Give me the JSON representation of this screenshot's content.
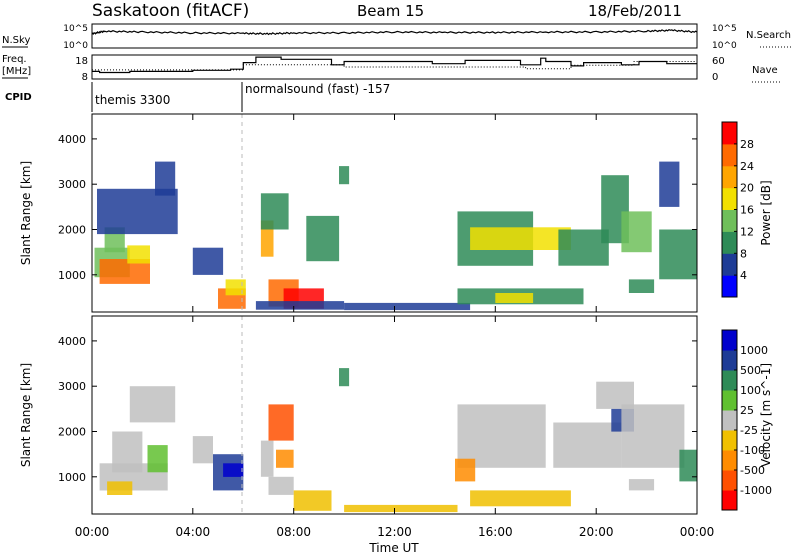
{
  "header": {
    "station": "Saskatoon (fitACF)",
    "beam": "Beam 15",
    "date": "18/Feb/2011"
  },
  "left_labels": {
    "nsky": "N.Sky",
    "freq_line1": "Freq.",
    "freq_line2": "[MHz]",
    "cpid": "CPID"
  },
  "right_labels": {
    "nsearch": "N.Search",
    "nave": "Nave"
  },
  "axis_ticks": {
    "noise_left": [
      "10^5",
      "10^0"
    ],
    "noise_right": [
      "10^5",
      "10^0"
    ],
    "freq_left": [
      "18",
      "8"
    ],
    "nave_right": [
      "60",
      "0"
    ]
  },
  "cpid_modes": [
    {
      "label": "themis 3300",
      "start_hour": 0,
      "end_hour": 6.0
    },
    {
      "label": "normalsound (fast) -157",
      "start_hour": 6.0,
      "end_hour": 24
    }
  ],
  "x_axis": {
    "title": "Time UT",
    "ticks": [
      "00:00",
      "04:00",
      "08:00",
      "12:00",
      "16:00",
      "20:00",
      "00:00"
    ]
  },
  "panels": {
    "power": {
      "ylabel": "Slant Range [km]",
      "yticks": [
        "1000",
        "2000",
        "3000",
        "4000"
      ],
      "cbar_label": "Power [dB]",
      "cbar_ticks": [
        "28",
        "24",
        "20",
        "16",
        "12",
        "8",
        "4"
      ]
    },
    "velocity": {
      "ylabel": "Slant Range [km]",
      "yticks": [
        "1000",
        "2000",
        "3000",
        "4000"
      ],
      "cbar_label": "Velocity [m s^-1]",
      "cbar_ticks": [
        "1000",
        "500",
        "100",
        "25",
        "-25",
        "-100",
        "-500",
        "-1000"
      ]
    }
  },
  "colors": {
    "power_scale": [
      "#0000ff",
      "#1e3c96",
      "#2e8b57",
      "#6fbf5a",
      "#f2e000",
      "#ffa500",
      "#ff6a00",
      "#ff0000"
    ],
    "velocity_scale": [
      "#0000cc",
      "#1e3c96",
      "#2e8b57",
      "#60c030",
      "#c0c0c0",
      "#f0c000",
      "#ff8c00",
      "#ff5000",
      "#ff0000"
    ]
  },
  "chart_data": [
    {
      "type": "line",
      "name": "noise",
      "x_unit": "hours UT",
      "x": [
        0,
        0.5,
        2,
        4,
        6,
        7,
        8,
        10,
        12,
        14,
        16,
        18,
        20,
        22,
        23,
        24
      ],
      "series": [
        {
          "name": "N.Sky",
          "values": [
            3.0,
            3.6,
            3.4,
            3.2,
            3.1,
            3.0,
            3.2,
            3.2,
            3.4,
            3.3,
            3.3,
            3.4,
            3.4,
            3.6,
            3.8,
            3.4
          ]
        }
      ],
      "ylim": [
        0,
        5
      ]
    },
    {
      "type": "line",
      "name": "frequency_and_nave",
      "x_unit": "hours UT",
      "series": [
        {
          "name": "Freq.",
          "unit": "MHz",
          "ylim": [
            8,
            18
          ],
          "steps": [
            [
              0,
              11.0
            ],
            [
              0.3,
              10.5
            ],
            [
              1.5,
              11.0
            ],
            [
              4.0,
              11.5
            ],
            [
              5.5,
              12.0
            ],
            [
              6.0,
              15.0
            ],
            [
              6.5,
              17.5
            ],
            [
              7.5,
              16.5
            ],
            [
              9.5,
              14.0
            ],
            [
              10.0,
              15.5
            ],
            [
              13.5,
              14.5
            ],
            [
              14.8,
              16.0
            ],
            [
              17.0,
              14.0
            ],
            [
              17.8,
              17.0
            ],
            [
              18.0,
              15.5
            ],
            [
              19.0,
              13.5
            ],
            [
              19.5,
              15.0
            ],
            [
              21.0,
              14.0
            ],
            [
              21.7,
              15.5
            ],
            [
              22.8,
              14.5
            ],
            [
              24,
              14.5
            ]
          ]
        },
        {
          "name": "Nave",
          "ylim": [
            0,
            60
          ],
          "steps": [
            [
              0,
              22
            ],
            [
              6.0,
              36
            ],
            [
              10.0,
              30
            ],
            [
              12.0,
              30
            ],
            [
              15.0,
              30
            ],
            [
              17.2,
              25
            ],
            [
              19.0,
              35
            ],
            [
              21.5,
              45
            ],
            [
              24,
              45
            ]
          ]
        }
      ]
    },
    {
      "type": "heatmap",
      "name": "power",
      "x_unit": "hours UT",
      "y_unit": "km",
      "xlim": [
        0,
        24
      ],
      "ylim": [
        180,
        4550
      ],
      "z_unit": "dB",
      "zlim": [
        0,
        30
      ],
      "regions": [
        {
          "t0": 0.1,
          "t1": 1.5,
          "r0": 950,
          "r1": 1600,
          "v": 12
        },
        {
          "t0": 0.3,
          "t1": 2.3,
          "r0": 800,
          "r1": 1350,
          "v": 24
        },
        {
          "t0": 0.5,
          "t1": 1.3,
          "r0": 1500,
          "r1": 2050,
          "v": 14
        },
        {
          "t0": 1.4,
          "t1": 2.3,
          "r0": 1250,
          "r1": 1650,
          "v": 16
        },
        {
          "t0": 0.2,
          "t1": 3.4,
          "r0": 1900,
          "r1": 2900,
          "v": 6
        },
        {
          "t0": 2.5,
          "t1": 3.3,
          "r0": 2750,
          "r1": 3500,
          "v": 6
        },
        {
          "t0": 4.0,
          "t1": 5.2,
          "r0": 1000,
          "r1": 1600,
          "v": 6
        },
        {
          "t0": 5.0,
          "t1": 6.1,
          "r0": 250,
          "r1": 700,
          "v": 26
        },
        {
          "t0": 5.3,
          "t1": 6.1,
          "r0": 550,
          "r1": 900,
          "v": 18
        },
        {
          "t0": 6.7,
          "t1": 7.2,
          "r0": 1400,
          "r1": 2200,
          "v": 20
        },
        {
          "t0": 7.0,
          "t1": 8.2,
          "r0": 300,
          "r1": 900,
          "v": 24
        },
        {
          "t0": 7.6,
          "t1": 9.2,
          "r0": 250,
          "r1": 700,
          "v": 30
        },
        {
          "t0": 6.5,
          "t1": 10.0,
          "r0": 230,
          "r1": 420,
          "v": 6
        },
        {
          "t0": 6.7,
          "t1": 7.8,
          "r0": 2000,
          "r1": 2800,
          "v": 8
        },
        {
          "t0": 8.5,
          "t1": 9.8,
          "r0": 1300,
          "r1": 2300,
          "v": 8
        },
        {
          "t0": 9.8,
          "t1": 10.2,
          "r0": 3000,
          "r1": 3400,
          "v": 8
        },
        {
          "t0": 10.0,
          "t1": 15.0,
          "r0": 220,
          "r1": 380,
          "v": 5
        },
        {
          "t0": 14.5,
          "t1": 17.5,
          "r0": 1200,
          "r1": 2400,
          "v": 10
        },
        {
          "t0": 15.0,
          "t1": 19.0,
          "r0": 1550,
          "r1": 2050,
          "v": 18
        },
        {
          "t0": 14.5,
          "t1": 19.5,
          "r0": 350,
          "r1": 700,
          "v": 8
        },
        {
          "t0": 16.0,
          "t1": 17.5,
          "r0": 380,
          "r1": 600,
          "v": 16
        },
        {
          "t0": 18.5,
          "t1": 20.5,
          "r0": 1200,
          "r1": 2000,
          "v": 8
        },
        {
          "t0": 20.2,
          "t1": 21.3,
          "r0": 1700,
          "r1": 3200,
          "v": 10
        },
        {
          "t0": 21.0,
          "t1": 22.2,
          "r0": 1500,
          "r1": 2400,
          "v": 12
        },
        {
          "t0": 21.3,
          "t1": 22.3,
          "r0": 600,
          "r1": 900,
          "v": 8
        },
        {
          "t0": 22.5,
          "t1": 24.0,
          "r0": 900,
          "r1": 2000,
          "v": 10
        },
        {
          "t0": 22.5,
          "t1": 23.3,
          "r0": 2500,
          "r1": 3500,
          "v": 6
        }
      ]
    },
    {
      "type": "heatmap",
      "name": "velocity",
      "x_unit": "hours UT",
      "y_unit": "km",
      "xlim": [
        0,
        24
      ],
      "ylim": [
        180,
        4550
      ],
      "z_unit": "m s^-1",
      "zlim": [
        -1000,
        1000
      ],
      "regions": [
        {
          "t0": 0.3,
          "t1": 3.0,
          "r0": 700,
          "r1": 1300,
          "v": 0
        },
        {
          "t0": 0.8,
          "t1": 2.0,
          "r0": 1100,
          "r1": 2000,
          "v": 0
        },
        {
          "t0": 1.5,
          "t1": 3.3,
          "r0": 2200,
          "r1": 3000,
          "v": 0
        },
        {
          "t0": 2.2,
          "t1": 3.0,
          "r0": 1100,
          "r1": 1700,
          "v": 80
        },
        {
          "t0": 0.6,
          "t1": 1.6,
          "r0": 600,
          "r1": 900,
          "v": -90
        },
        {
          "t0": 4.0,
          "t1": 4.8,
          "r0": 1300,
          "r1": 1900,
          "v": 0
        },
        {
          "t0": 4.8,
          "t1": 6.0,
          "r0": 700,
          "r1": 1500,
          "v": 600
        },
        {
          "t0": 5.2,
          "t1": 6.0,
          "r0": 1000,
          "r1": 1300,
          "v": 1100
        },
        {
          "t0": 6.7,
          "t1": 7.2,
          "r0": 1000,
          "r1": 1800,
          "v": 0
        },
        {
          "t0": 7.0,
          "t1": 8.0,
          "r0": 1800,
          "r1": 2600,
          "v": -600
        },
        {
          "t0": 7.3,
          "t1": 8.0,
          "r0": 1200,
          "r1": 1600,
          "v": -300
        },
        {
          "t0": 7.0,
          "t1": 8.0,
          "r0": 600,
          "r1": 1000,
          "v": 0
        },
        {
          "t0": 8.0,
          "t1": 9.5,
          "r0": 250,
          "r1": 700,
          "v": -80
        },
        {
          "t0": 9.8,
          "t1": 10.2,
          "r0": 3000,
          "r1": 3400,
          "v": 150
        },
        {
          "t0": 10.0,
          "t1": 14.5,
          "r0": 220,
          "r1": 380,
          "v": -60
        },
        {
          "t0": 14.5,
          "t1": 18.0,
          "r0": 1200,
          "r1": 2600,
          "v": 0
        },
        {
          "t0": 14.4,
          "t1": 15.2,
          "r0": 900,
          "r1": 1400,
          "v": -300
        },
        {
          "t0": 15.0,
          "t1": 19.0,
          "r0": 350,
          "r1": 700,
          "v": -60
        },
        {
          "t0": 18.3,
          "t1": 21.0,
          "r0": 1200,
          "r1": 2200,
          "v": 0
        },
        {
          "t0": 20.0,
          "t1": 21.5,
          "r0": 2500,
          "r1": 3100,
          "v": 0
        },
        {
          "t0": 20.6,
          "t1": 21.5,
          "r0": 2000,
          "r1": 2500,
          "v": 600
        },
        {
          "t0": 21.0,
          "t1": 23.5,
          "r0": 1200,
          "r1": 2600,
          "v": 0
        },
        {
          "t0": 23.3,
          "t1": 24.0,
          "r0": 900,
          "r1": 1600,
          "v": 150
        },
        {
          "t0": 21.3,
          "t1": 22.3,
          "r0": 700,
          "r1": 950,
          "v": 0
        }
      ]
    }
  ]
}
